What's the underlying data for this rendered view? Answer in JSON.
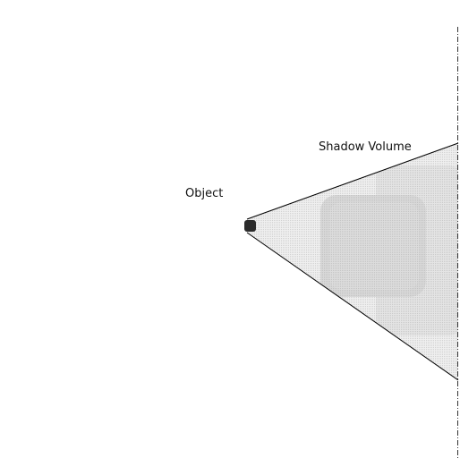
{
  "diagram": {
    "object_label": "Object",
    "shadow_volume_label": "Shadow Volume"
  },
  "colors": {
    "background": "#ffffff",
    "line": "#000000",
    "object_fill": "#2b2b2b",
    "volume_outer": "#ececec",
    "volume_mid": "#e2e2e2",
    "volume_inner": "#d3d3d3",
    "boundary": "#333333"
  }
}
